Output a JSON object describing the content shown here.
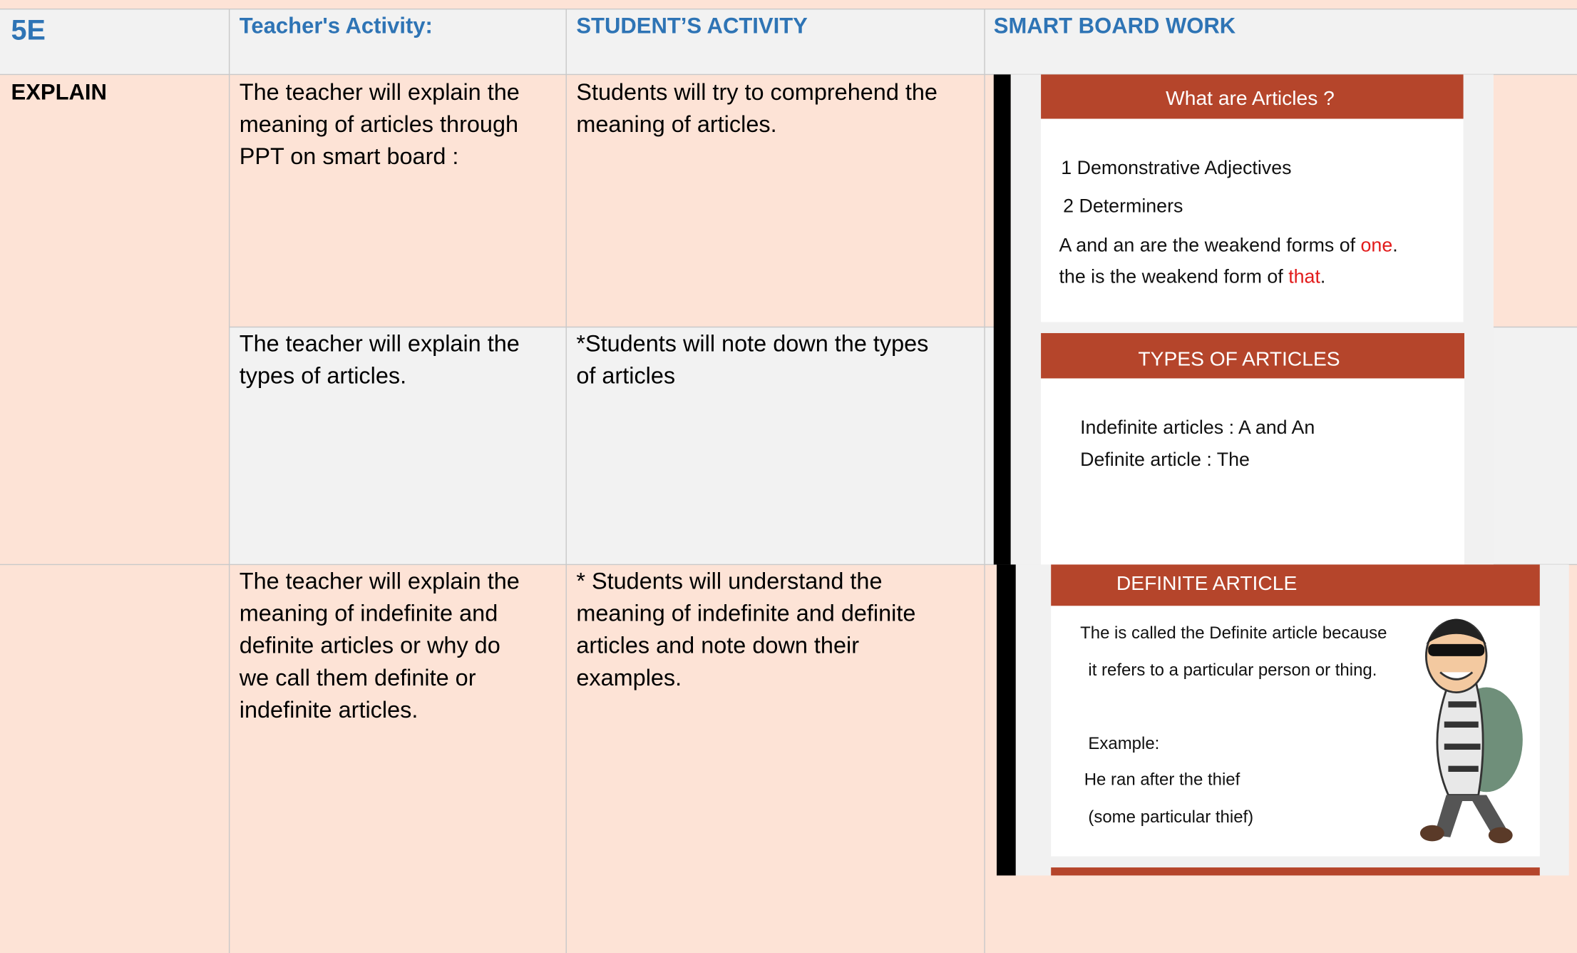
{
  "table": {
    "header": [
      "5E",
      "Teacher's Activity:",
      "STUDENT’S ACTIVITY",
      "SMART BOARD WORK"
    ],
    "stage": "EXPLAIN",
    "rows": [
      {
        "teacher": [
          "The teacher will explain the",
          "meaning of articles through",
          "PPT  on smart board :"
        ],
        "student": [
          " Students will try to comprehend the",
          "meaning of articles."
        ]
      },
      {
        "teacher": [
          "The teacher will explain the",
          "types of articles."
        ],
        "student": [
          "*Students will note down the types",
          "of articles"
        ]
      },
      {
        "teacher": [
          "The teacher will explain the",
          "meaning of indefinite and",
          "definite articles or why do",
          "we call them definite or",
          "indefinite articles."
        ],
        "student": [
          "* Students will understand the",
          "meaning of indefinite and definite",
          "articles and note down their",
          "examples."
        ]
      }
    ]
  },
  "slides": [
    {
      "title": "What are Articles ?",
      "lines": [
        [
          "1  Demonstrative Adjectives"
        ],
        [
          "2  Determiners"
        ],
        [
          "A and an are the weakend forms of ",
          "one",
          "."
        ],
        [
          "the is the weakend form of ",
          "that",
          "."
        ]
      ]
    },
    {
      "title": "TYPES OF ARTICLES",
      "lines": [
        [
          "Indefinite articles : A and An"
        ],
        [
          "Definite article : The"
        ]
      ]
    },
    {
      "title": "DEFINITE ARTICLE",
      "lines": [
        [
          "The is called the Definite article because"
        ],
        [
          "it refers to a particular person or thing."
        ],
        [
          "Example:"
        ],
        [
          "He ran after the thief"
        ],
        [
          "(some particular thief)"
        ]
      ]
    }
  ]
}
